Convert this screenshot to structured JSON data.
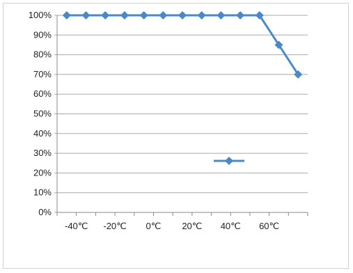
{
  "chart_data": {
    "type": "line",
    "title": "",
    "xlabel": "",
    "ylabel": "",
    "x": [
      -45,
      -35,
      -25,
      -15,
      -5,
      5,
      15,
      25,
      35,
      45,
      55,
      65,
      75
    ],
    "series": [
      {
        "name": "",
        "color": "#4a89c8",
        "marker": "diamond",
        "values": [
          100,
          100,
          100,
          100,
          100,
          100,
          100,
          100,
          100,
          100,
          100,
          85,
          70
        ]
      }
    ],
    "x_tick_labels": [
      "-40℃",
      "-20℃",
      "0℃",
      "20℃",
      "40℃",
      "60℃"
    ],
    "x_tick_values": [
      -40,
      -20,
      0,
      20,
      40,
      60
    ],
    "y_tick_labels": [
      "0%",
      "10%",
      "20%",
      "30%",
      "40%",
      "50%",
      "60%",
      "70%",
      "80%",
      "90%",
      "100%"
    ],
    "ylim": [
      0,
      100
    ],
    "xlim": [
      -50,
      80
    ],
    "grid": "horizontal",
    "legend": {
      "placement": "inside-bottom-right",
      "series_name": ""
    }
  }
}
